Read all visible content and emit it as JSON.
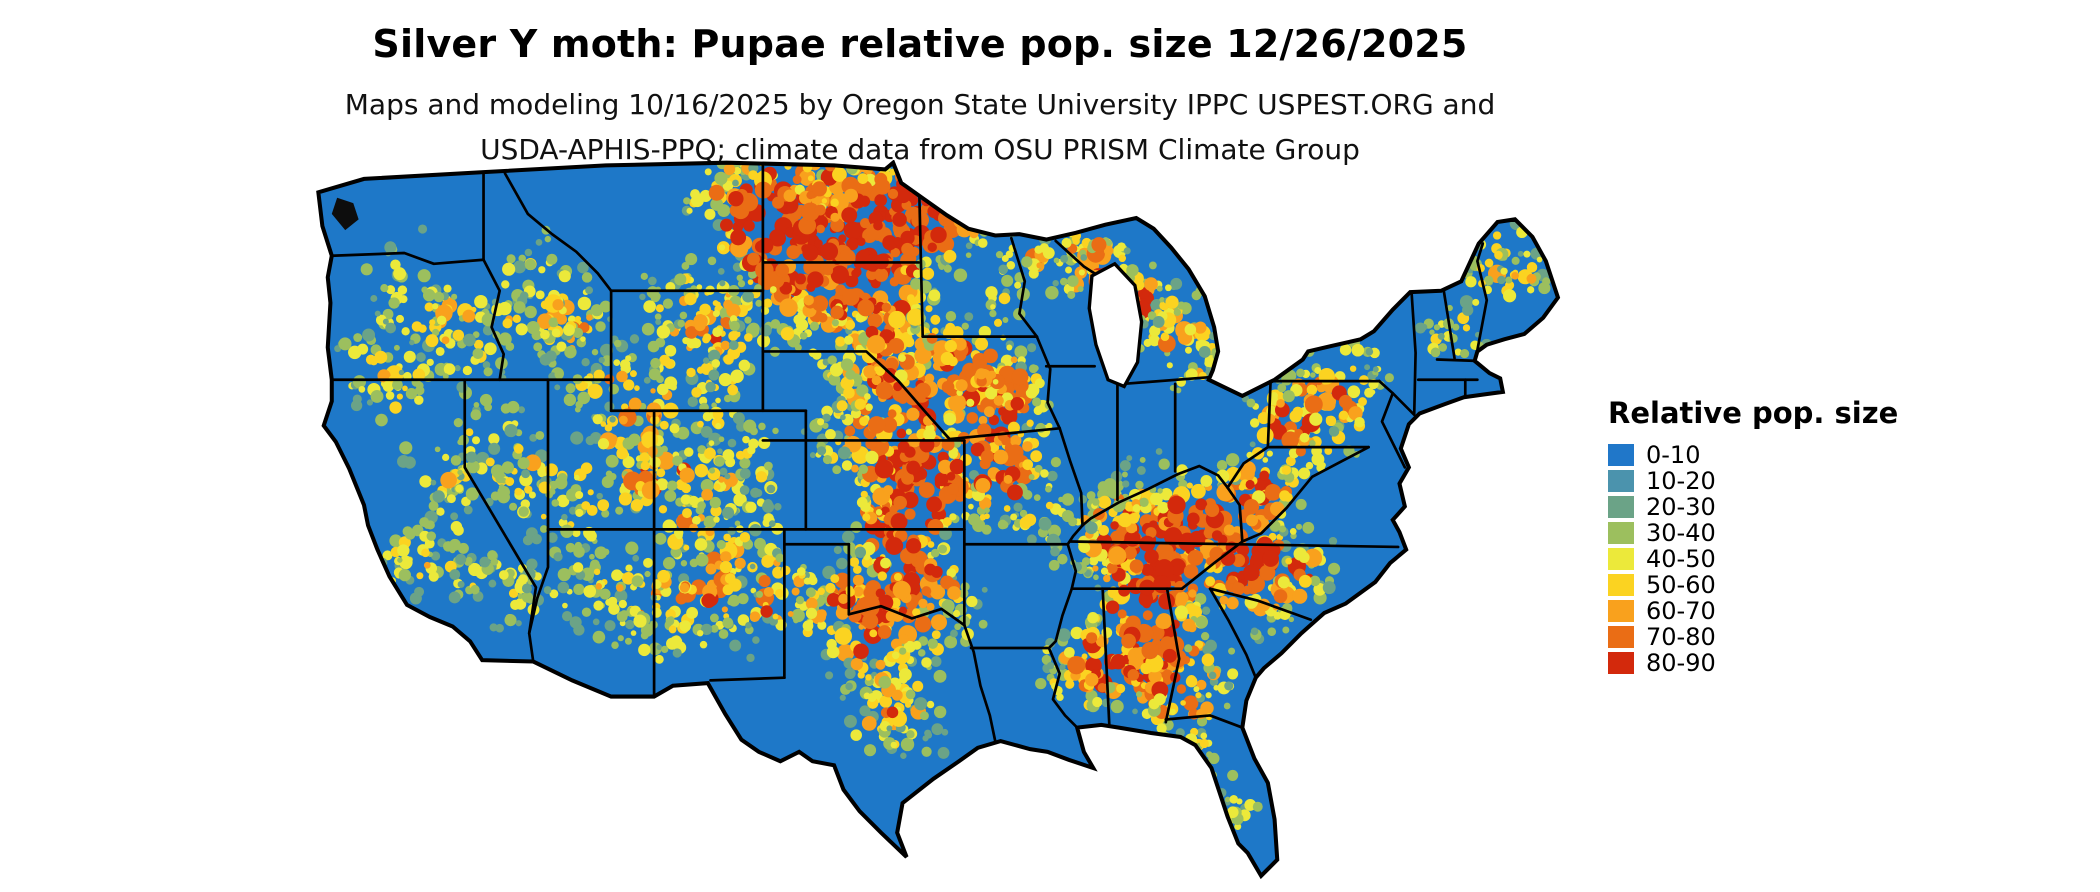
{
  "header": {
    "title": "Silver Y moth: Pupae relative pop. size 12/26/2025",
    "subtitle_line1": "Maps and modeling 10/16/2025 by Oregon State University IPPC USPEST.ORG and",
    "subtitle_line2": "USDA-APHIS-PPQ; climate data from OSU PRISM Climate Group"
  },
  "map": {
    "region": "Continental United States",
    "base_color": "#1e78c8",
    "water_color": "#ffffff",
    "border_color": "#000000"
  },
  "legend": {
    "title": "Relative pop. size",
    "items": [
      {
        "label": "0-10",
        "color": "#2077c9"
      },
      {
        "label": "10-20",
        "color": "#4b93ad"
      },
      {
        "label": "20-30",
        "color": "#6ba387"
      },
      {
        "label": "30-40",
        "color": "#9cbf5e"
      },
      {
        "label": "40-50",
        "color": "#ece93a"
      },
      {
        "label": "50-60",
        "color": "#fbd321"
      },
      {
        "label": "60-70",
        "color": "#f9a11d"
      },
      {
        "label": "70-80",
        "color": "#ea6d15"
      },
      {
        "label": "80-90",
        "color": "#d3290c"
      }
    ]
  }
}
